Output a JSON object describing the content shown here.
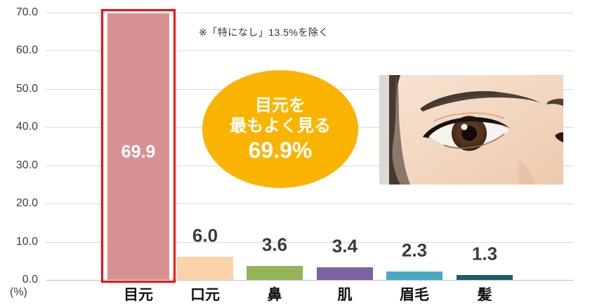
{
  "chart_data": {
    "type": "bar",
    "title": "",
    "categories": [
      "目元",
      "口元",
      "鼻",
      "肌",
      "眉毛",
      "髪"
    ],
    "values": [
      69.9,
      6.0,
      3.6,
      3.4,
      2.3,
      1.3
    ],
    "value_labels": [
      "69.9",
      "6.0",
      "3.6",
      "3.4",
      "2.3",
      "1.3"
    ],
    "yticks": [
      "70.0",
      "60.0",
      "50.0",
      "40.0",
      "30.0",
      "20.0",
      "10.0",
      "0.0"
    ],
    "ylim": [
      0,
      70
    ],
    "ytick_step": 10,
    "unit_label": "(%)",
    "grid": true,
    "legend": "none",
    "bar_colors": [
      "#d79193",
      "#fad3aa",
      "#93b457",
      "#7d62a1",
      "#47aac4",
      "#1f5b6b"
    ],
    "highlight": {
      "index": 0,
      "outline_color": "#fe0000",
      "value_label_inside": true
    }
  },
  "annotation": {
    "text": "※「特になし」13.5%を除く"
  },
  "callout": {
    "lines": [
      "目元を",
      "最もよく見る",
      "69.9%"
    ],
    "bg_color": "#fab400",
    "text_color": "#ffffff"
  },
  "photo": {
    "name": "eye-makeup-photo"
  }
}
